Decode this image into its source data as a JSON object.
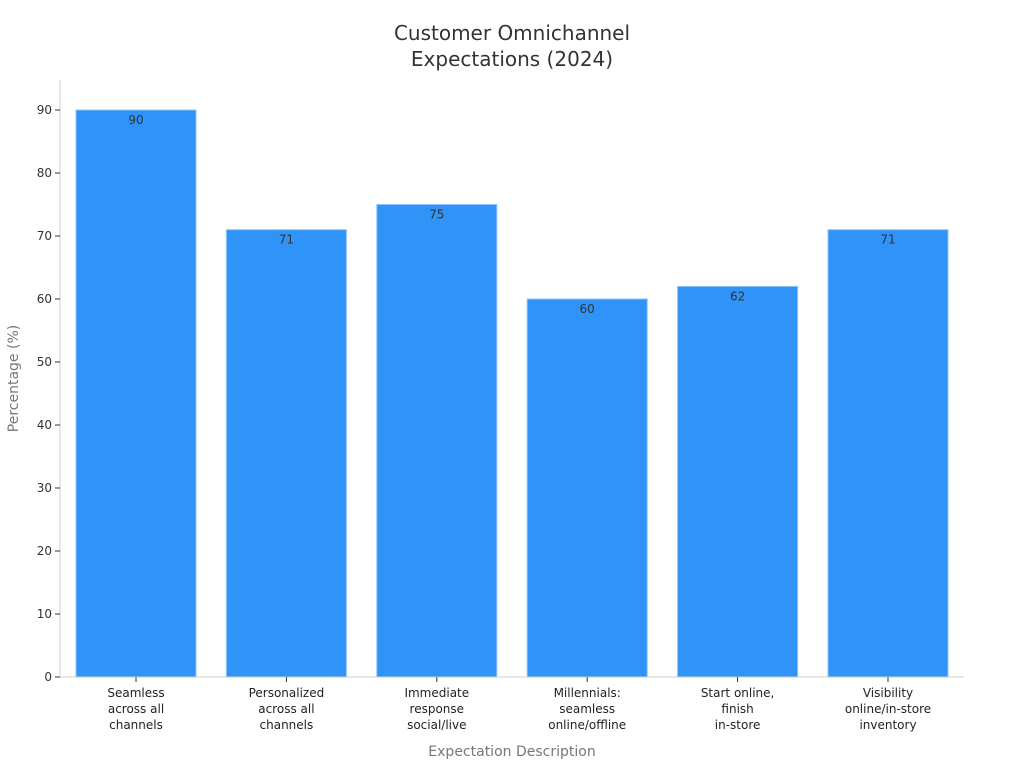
{
  "chart_data": {
    "type": "bar",
    "title_lines": [
      "Customer Omnichannel",
      "Expectations (2024)"
    ],
    "xlabel": "Expectation Description",
    "ylabel": "Percentage (%)",
    "ylim": [
      0,
      95
    ],
    "yticks": [
      0,
      10,
      20,
      30,
      40,
      50,
      60,
      70,
      80,
      90
    ],
    "categories": [
      [
        "Seamless",
        "across all",
        "channels"
      ],
      [
        "Personalized",
        "across all",
        "channels"
      ],
      [
        "Immediate",
        "response",
        "social/live"
      ],
      [
        "Millennials:",
        "seamless",
        "online/offline"
      ],
      [
        "Start online,",
        "finish",
        "in-store"
      ],
      [
        "Visibility",
        "online/in-store",
        "inventory"
      ]
    ],
    "values": [
      90,
      71,
      75,
      60,
      62,
      71
    ],
    "bar_color": "#2f93f7",
    "grid": false,
    "legend": "none"
  }
}
